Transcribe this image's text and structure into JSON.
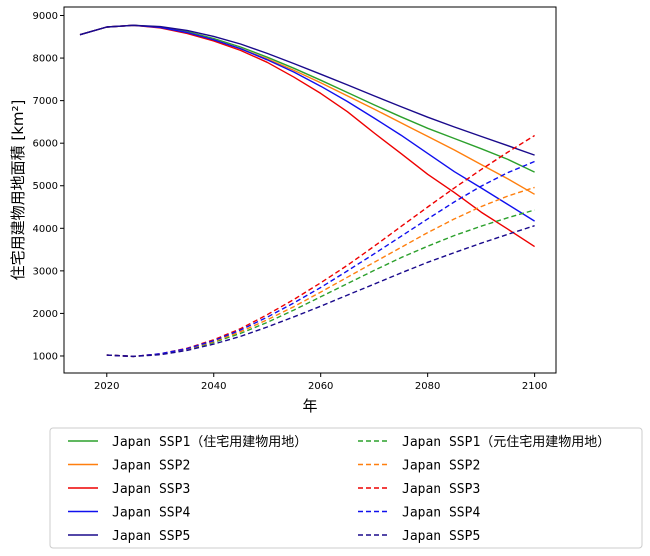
{
  "chart_data": {
    "type": "line",
    "title": "",
    "xlabel": "年",
    "ylabel": "住宅用建物用地面積 [km²]",
    "xlim": [
      2012,
      2104
    ],
    "ylim": [
      600,
      9200
    ],
    "xticks": [
      2020,
      2040,
      2060,
      2080,
      2100
    ],
    "yticks": [
      1000,
      2000,
      3000,
      4000,
      5000,
      6000,
      7000,
      8000,
      9000
    ],
    "grid": false,
    "legend_position": "below",
    "series": [
      {
        "name": "Japan SSP1（住宅用建物用地）",
        "color": "#2ca02c",
        "dash": "solid",
        "x": [
          2015,
          2020,
          2025,
          2030,
          2035,
          2040,
          2045,
          2050,
          2055,
          2060,
          2065,
          2070,
          2075,
          2080,
          2085,
          2090,
          2095,
          2100
        ],
        "values": [
          8550,
          8730,
          8770,
          8730,
          8620,
          8460,
          8260,
          8020,
          7760,
          7480,
          7190,
          6900,
          6620,
          6350,
          6110,
          5870,
          5620,
          5320
        ]
      },
      {
        "name": "Japan SSP2",
        "color": "#ff7f0e",
        "dash": "solid",
        "x": [
          2015,
          2020,
          2025,
          2030,
          2035,
          2040,
          2045,
          2050,
          2055,
          2060,
          2065,
          2070,
          2075,
          2080,
          2085,
          2090,
          2095,
          2100
        ],
        "values": [
          8550,
          8730,
          8770,
          8720,
          8600,
          8430,
          8220,
          7980,
          7710,
          7420,
          7110,
          6800,
          6480,
          6160,
          5840,
          5500,
          5160,
          4800
        ]
      },
      {
        "name": "Japan SSP3",
        "color": "#ee0000",
        "dash": "solid",
        "x": [
          2015,
          2020,
          2025,
          2030,
          2035,
          2040,
          2045,
          2050,
          2055,
          2060,
          2065,
          2070,
          2075,
          2080,
          2085,
          2090,
          2095,
          2100
        ],
        "values": [
          8550,
          8730,
          8770,
          8710,
          8580,
          8400,
          8180,
          7900,
          7550,
          7170,
          6740,
          6240,
          5760,
          5270,
          4840,
          4380,
          3980,
          3570
        ]
      },
      {
        "name": "Japan SSP4",
        "color": "#1010ee",
        "dash": "solid",
        "x": [
          2015,
          2020,
          2025,
          2030,
          2035,
          2040,
          2045,
          2050,
          2055,
          2060,
          2065,
          2070,
          2075,
          2080,
          2085,
          2090,
          2095,
          2100
        ],
        "values": [
          8550,
          8730,
          8770,
          8720,
          8600,
          8430,
          8220,
          7960,
          7670,
          7340,
          6980,
          6590,
          6190,
          5760,
          5330,
          4950,
          4560,
          4170
        ]
      },
      {
        "name": "Japan SSP5",
        "color": "#1a0a8c",
        "dash": "solid",
        "x": [
          2015,
          2020,
          2025,
          2030,
          2035,
          2040,
          2045,
          2050,
          2055,
          2060,
          2065,
          2070,
          2075,
          2080,
          2085,
          2090,
          2095,
          2100
        ],
        "values": [
          8550,
          8730,
          8770,
          8740,
          8650,
          8510,
          8330,
          8110,
          7870,
          7620,
          7370,
          7110,
          6860,
          6610,
          6380,
          6160,
          5940,
          5720
        ]
      },
      {
        "name": "Japan SSP1（元住宅用建物用地）",
        "color": "#2ca02c",
        "dash": "dashed",
        "x": [
          2020,
          2025,
          2030,
          2035,
          2040,
          2045,
          2050,
          2055,
          2060,
          2065,
          2070,
          2075,
          2080,
          2085,
          2090,
          2095,
          2100
        ],
        "values": [
          1020,
          990,
          1040,
          1150,
          1320,
          1530,
          1790,
          2080,
          2390,
          2700,
          3010,
          3310,
          3580,
          3830,
          4050,
          4250,
          4430
        ]
      },
      {
        "name": "Japan SSP2",
        "color": "#ff7f0e",
        "dash": "dashed",
        "x": [
          2020,
          2025,
          2030,
          2035,
          2040,
          2045,
          2050,
          2055,
          2060,
          2065,
          2070,
          2075,
          2080,
          2085,
          2090,
          2095,
          2100
        ],
        "values": [
          1020,
          990,
          1040,
          1160,
          1340,
          1570,
          1850,
          2160,
          2500,
          2850,
          3200,
          3550,
          3900,
          4220,
          4510,
          4760,
          4960
        ]
      },
      {
        "name": "Japan SSP3",
        "color": "#ee0000",
        "dash": "dashed",
        "x": [
          2020,
          2025,
          2030,
          2035,
          2040,
          2045,
          2050,
          2055,
          2060,
          2065,
          2070,
          2075,
          2080,
          2085,
          2090,
          2095,
          2100
        ],
        "values": [
          1020,
          990,
          1050,
          1180,
          1380,
          1640,
          1970,
          2330,
          2720,
          3130,
          3580,
          4040,
          4500,
          4950,
          5380,
          5790,
          6180
        ]
      },
      {
        "name": "Japan SSP4",
        "color": "#1010ee",
        "dash": "dashed",
        "x": [
          2020,
          2025,
          2030,
          2035,
          2040,
          2045,
          2050,
          2055,
          2060,
          2065,
          2070,
          2075,
          2080,
          2085,
          2090,
          2095,
          2100
        ],
        "values": [
          1020,
          990,
          1050,
          1170,
          1360,
          1610,
          1910,
          2250,
          2610,
          3000,
          3400,
          3810,
          4220,
          4620,
          4990,
          5310,
          5570
        ]
      },
      {
        "name": "Japan SSP5",
        "color": "#1a0a8c",
        "dash": "dashed",
        "x": [
          2020,
          2025,
          2030,
          2035,
          2040,
          2045,
          2050,
          2055,
          2060,
          2065,
          2070,
          2075,
          2080,
          2085,
          2090,
          2095,
          2100
        ],
        "values": [
          1020,
          990,
          1030,
          1130,
          1280,
          1460,
          1680,
          1920,
          2170,
          2430,
          2690,
          2950,
          3200,
          3430,
          3650,
          3860,
          4060
        ]
      }
    ]
  }
}
